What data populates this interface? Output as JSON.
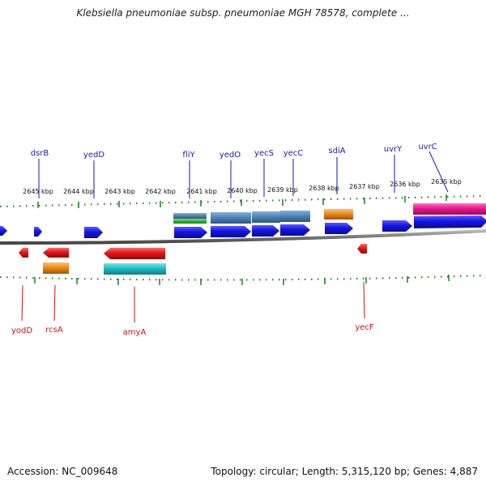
{
  "title": "Klebsiella pneumoniae subsp. pneumoniae MGH 78578, complete ...",
  "footer": {
    "accession": "Accession: NC_009648",
    "summary": "Topology: circular; Length: 5,315,120 bp; Genes: 4,887"
  },
  "colors": {
    "forward_cds": "#1515e6",
    "reverse_cds": "#e61515",
    "steelblue_feature": "#4f86b8",
    "orange_feature": "#f08c1a",
    "green_feature": "#33bb33",
    "teal_feature": "#1ebfc4",
    "magenta_feature": "#e8188a",
    "axis_gray": "#777777",
    "tick_green": "#1e7a1e",
    "top_label_color": "#1a1aa8",
    "bottom_label_color": "#cc1111"
  },
  "scale_labels": [
    "2645 kbp",
    "2644 kbp",
    "2643 kbp",
    "2642 kbp",
    "2641 kbp",
    "2640 kbp",
    "2639 kbp",
    "2638 kbp",
    "2637 kbp",
    "2636 kbp",
    "2635 kbp"
  ],
  "genes_top": [
    "dsrB",
    "yedD",
    "fliY",
    "yedO",
    "yecS",
    "yecC",
    "sdiA",
    "uvrY",
    "uvrC"
  ],
  "genes_bottom": [
    "yodD",
    "rcsA",
    "amyA",
    "yecF"
  ]
}
